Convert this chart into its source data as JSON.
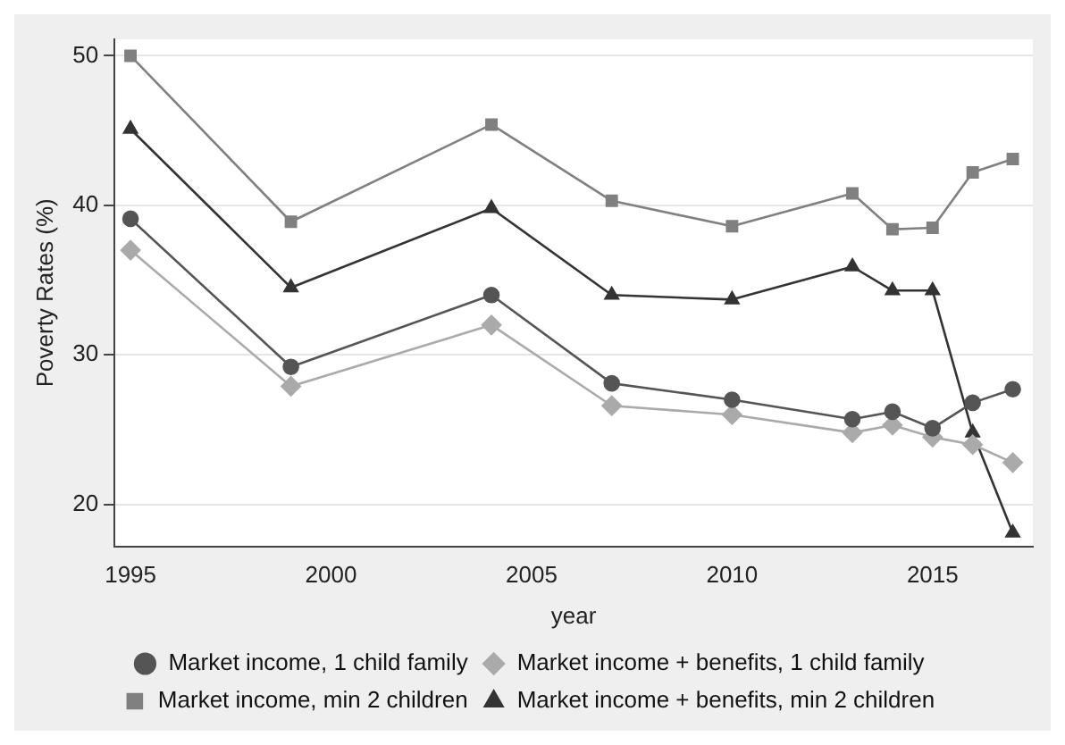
{
  "chart_data": {
    "type": "line",
    "xlabel": "year",
    "ylabel": "Poverty Rates (%)",
    "x": [
      1995,
      1999,
      2004,
      2007,
      2010,
      2013,
      2014,
      2015,
      2016,
      2017
    ],
    "xlim": [
      1994.6,
      2017.5
    ],
    "xticks": [
      1995,
      2000,
      2005,
      2010,
      2015
    ],
    "ylim": [
      17.2,
      51.1
    ],
    "yticks": [
      20,
      30,
      40,
      50
    ],
    "grid": "y",
    "legend": "bottom",
    "line_style": "solid",
    "series": [
      {
        "name": "Market income, 1 child family",
        "color": "#555555",
        "marker": "circle",
        "values": [
          39.1,
          29.2,
          34.0,
          28.1,
          27.0,
          25.7,
          26.2,
          25.1,
          26.8,
          27.7
        ]
      },
      {
        "name": "Market income + benefits, 1 child family",
        "color": "#aaaaaa",
        "marker": "diamond",
        "values": [
          37.0,
          27.9,
          32.0,
          26.6,
          26.0,
          24.8,
          25.3,
          24.5,
          24.0,
          22.8
        ]
      },
      {
        "name": "Market income, min 2 children",
        "color": "#808080",
        "marker": "square",
        "values": [
          50.0,
          38.9,
          45.4,
          40.3,
          38.6,
          40.8,
          38.4,
          38.5,
          42.2,
          43.1
        ]
      },
      {
        "name": "Market income + benefits, min 2 children",
        "color": "#333333",
        "marker": "triangle",
        "values": [
          45.1,
          34.5,
          39.8,
          34.0,
          33.7,
          35.9,
          34.3,
          34.3,
          24.8,
          18.1
        ]
      }
    ]
  }
}
